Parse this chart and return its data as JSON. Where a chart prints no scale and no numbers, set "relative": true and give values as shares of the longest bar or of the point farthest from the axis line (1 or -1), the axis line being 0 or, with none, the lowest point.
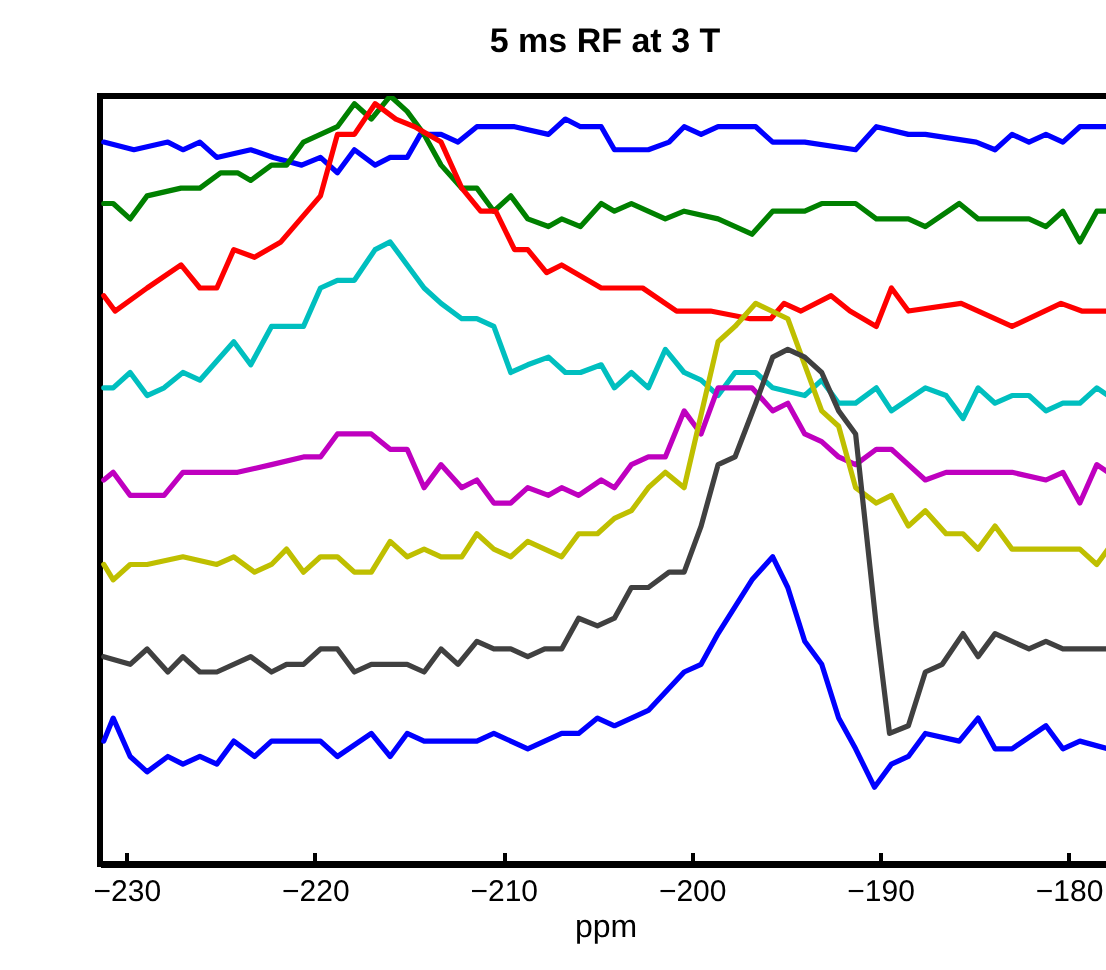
{
  "chart_data": {
    "type": "line",
    "title": "5 ms RF at 3 T",
    "xlabel": "ppm",
    "relative": true,
    "xlim": [
      -231.4,
      -177.8
    ],
    "xticks": [
      -230,
      -220,
      -210,
      -200,
      -190,
      -180
    ],
    "series": [
      {
        "color": "#0000ff",
        "x": [
          -231.2,
          -229.6,
          -227.8,
          -227,
          -226.1,
          -225.2,
          -223.4,
          -222.2,
          -220.7,
          -219.7,
          -218.8,
          -217.9,
          -216.8,
          -216,
          -215.1,
          -214.4,
          -213.3,
          -212.4,
          -211.4,
          -210.5,
          -209.4,
          -207.6,
          -206.7,
          -205.9,
          -204.8,
          -204.1,
          -202.3,
          -201.2,
          -200.4,
          -199.5,
          -198.6,
          -196.6,
          -195.7,
          -194,
          -191.3,
          -190.2,
          -188.5,
          -187.6,
          -184.9,
          -183.9,
          -183,
          -182.1,
          -181.2,
          -180.3,
          -179.4,
          -177.9
        ],
        "values": [
          0.94,
          0.93,
          0.94,
          0.93,
          0.94,
          0.92,
          0.93,
          0.92,
          0.91,
          0.92,
          0.9,
          0.93,
          0.91,
          0.92,
          0.92,
          0.95,
          0.95,
          0.94,
          0.96,
          0.96,
          0.96,
          0.95,
          0.97,
          0.96,
          0.96,
          0.93,
          0.93,
          0.94,
          0.96,
          0.95,
          0.96,
          0.96,
          0.94,
          0.94,
          0.93,
          0.96,
          0.95,
          0.95,
          0.94,
          0.93,
          0.95,
          0.94,
          0.95,
          0.94,
          0.96,
          0.96
        ]
      },
      {
        "color": "#008000",
        "x": [
          -231.2,
          -230.7,
          -229.8,
          -228.9,
          -227.1,
          -226.1,
          -225,
          -224.1,
          -223.4,
          -222.3,
          -221.5,
          -220.6,
          -219.7,
          -218.8,
          -217.9,
          -217,
          -216,
          -215.1,
          -214.2,
          -213.3,
          -212.2,
          -211.4,
          -210.5,
          -209.6,
          -208.7,
          -207.6,
          -206.9,
          -205.9,
          -204.8,
          -204.1,
          -203.2,
          -201.4,
          -200.4,
          -198.6,
          -196.8,
          -195.7,
          -194,
          -193.1,
          -191.3,
          -190.2,
          -188.5,
          -187.6,
          -185.8,
          -184.8,
          -183,
          -182.1,
          -181.2,
          -180.3,
          -179.4,
          -178.5,
          -177.9
        ],
        "values": [
          0.86,
          0.86,
          0.84,
          0.87,
          0.88,
          0.88,
          0.9,
          0.9,
          0.89,
          0.91,
          0.91,
          0.94,
          0.95,
          0.96,
          0.99,
          0.97,
          1.0,
          0.98,
          0.95,
          0.91,
          0.88,
          0.88,
          0.85,
          0.87,
          0.84,
          0.83,
          0.84,
          0.83,
          0.86,
          0.85,
          0.86,
          0.84,
          0.85,
          0.84,
          0.82,
          0.85,
          0.85,
          0.86,
          0.86,
          0.84,
          0.84,
          0.83,
          0.86,
          0.84,
          0.84,
          0.84,
          0.83,
          0.85,
          0.81,
          0.85,
          0.85
        ]
      },
      {
        "color": "#ff0000",
        "x": [
          -231.2,
          -230.6,
          -228.9,
          -227.1,
          -226.1,
          -225.2,
          -224.3,
          -223.2,
          -221.8,
          -219.7,
          -218.8,
          -217.9,
          -216.8,
          -215.7,
          -214.7,
          -213.3,
          -212.2,
          -211.2,
          -210.4,
          -209.4,
          -208.7,
          -207.7,
          -206.9,
          -204.8,
          -202.6,
          -200.8,
          -199,
          -196.9,
          -195.8,
          -195.1,
          -194.2,
          -192.6,
          -191.6,
          -190.2,
          -189.4,
          -188.5,
          -185.7,
          -183,
          -180.4,
          -179.3,
          -178
        ],
        "values": [
          0.74,
          0.72,
          0.75,
          0.78,
          0.75,
          0.75,
          0.8,
          0.79,
          0.81,
          0.87,
          0.95,
          0.95,
          0.99,
          0.97,
          0.96,
          0.94,
          0.88,
          0.85,
          0.85,
          0.8,
          0.8,
          0.77,
          0.78,
          0.75,
          0.75,
          0.72,
          0.72,
          0.71,
          0.71,
          0.73,
          0.72,
          0.74,
          0.72,
          0.7,
          0.75,
          0.72,
          0.73,
          0.7,
          0.73,
          0.72,
          0.72
        ]
      },
      {
        "color": "#00bfbf",
        "x": [
          -231.2,
          -230.7,
          -229.8,
          -228.9,
          -228,
          -227,
          -226.1,
          -224.3,
          -223.4,
          -222.3,
          -221.5,
          -220.6,
          -219.7,
          -218.8,
          -217.9,
          -216.8,
          -216,
          -215.1,
          -214.2,
          -213.3,
          -212.2,
          -211.4,
          -210.5,
          -209.6,
          -208.7,
          -207.6,
          -206.7,
          -205.9,
          -204.8,
          -204.1,
          -203.2,
          -202.3,
          -201.4,
          -200.4,
          -199.5,
          -198.6,
          -197.7,
          -196.6,
          -195.7,
          -194,
          -193.1,
          -192.2,
          -191.3,
          -190.2,
          -189.4,
          -187.6,
          -186.5,
          -185.6,
          -184.8,
          -183.9,
          -183,
          -182.1,
          -181.2,
          -180.3,
          -179.4,
          -178.5,
          -177.9
        ],
        "values": [
          0.62,
          0.62,
          0.64,
          0.61,
          0.62,
          0.64,
          0.63,
          0.68,
          0.65,
          0.7,
          0.7,
          0.7,
          0.75,
          0.76,
          0.76,
          0.8,
          0.81,
          0.78,
          0.75,
          0.73,
          0.71,
          0.71,
          0.7,
          0.64,
          0.65,
          0.66,
          0.64,
          0.64,
          0.65,
          0.62,
          0.64,
          0.62,
          0.67,
          0.64,
          0.63,
          0.61,
          0.64,
          0.64,
          0.62,
          0.61,
          0.63,
          0.6,
          0.6,
          0.62,
          0.59,
          0.62,
          0.61,
          0.58,
          0.62,
          0.6,
          0.61,
          0.61,
          0.59,
          0.6,
          0.6,
          0.62,
          0.61
        ]
      },
      {
        "color": "#bf00bf",
        "x": [
          -231.2,
          -230.7,
          -229.8,
          -228,
          -227,
          -226.1,
          -225.2,
          -224.1,
          -222.3,
          -220.6,
          -219.7,
          -218.8,
          -217.9,
          -217,
          -216,
          -215.1,
          -214.2,
          -213.3,
          -212.2,
          -211.4,
          -210.5,
          -209.6,
          -208.7,
          -207.6,
          -206.9,
          -206,
          -204.8,
          -204.1,
          -203.2,
          -202.3,
          -201.4,
          -200.4,
          -199.5,
          -198.6,
          -196.8,
          -195.7,
          -194.9,
          -194,
          -193.1,
          -192.2,
          -191.3,
          -190.2,
          -189.4,
          -188.5,
          -187.6,
          -186.5,
          -183.9,
          -183,
          -181.2,
          -180.3,
          -179.4,
          -178.5,
          -177.9
        ],
        "values": [
          0.5,
          0.51,
          0.48,
          0.48,
          0.51,
          0.51,
          0.51,
          0.51,
          0.52,
          0.53,
          0.53,
          0.56,
          0.56,
          0.56,
          0.54,
          0.54,
          0.49,
          0.52,
          0.49,
          0.5,
          0.47,
          0.47,
          0.49,
          0.48,
          0.49,
          0.48,
          0.5,
          0.49,
          0.52,
          0.53,
          0.53,
          0.59,
          0.56,
          0.62,
          0.62,
          0.59,
          0.6,
          0.56,
          0.55,
          0.53,
          0.52,
          0.54,
          0.54,
          0.52,
          0.5,
          0.51,
          0.51,
          0.51,
          0.5,
          0.51,
          0.47,
          0.52,
          0.51
        ]
      },
      {
        "color": "#bfbf00",
        "x": [
          -231.2,
          -230.7,
          -229.8,
          -228.9,
          -227,
          -225.2,
          -224.3,
          -223.2,
          -222.3,
          -221.5,
          -220.6,
          -219.7,
          -218.8,
          -217.9,
          -217,
          -216,
          -215.1,
          -214.2,
          -213.3,
          -212.2,
          -211.4,
          -210.5,
          -209.6,
          -208.7,
          -207.8,
          -206.9,
          -206,
          -205,
          -204.1,
          -203.2,
          -202.3,
          -201.4,
          -200.4,
          -198.6,
          -197.7,
          -196.6,
          -194.9,
          -194,
          -193.1,
          -192.2,
          -191.3,
          -190.2,
          -189.4,
          -188.5,
          -187.6,
          -186.5,
          -185.6,
          -184.8,
          -183.9,
          -183,
          -182.1,
          -181.2,
          -180.3,
          -179.4,
          -178.5,
          -177.9
        ],
        "values": [
          0.39,
          0.37,
          0.39,
          0.39,
          0.4,
          0.39,
          0.4,
          0.38,
          0.39,
          0.41,
          0.38,
          0.4,
          0.4,
          0.38,
          0.38,
          0.42,
          0.4,
          0.41,
          0.4,
          0.4,
          0.43,
          0.41,
          0.4,
          0.42,
          0.41,
          0.4,
          0.43,
          0.43,
          0.45,
          0.46,
          0.49,
          0.51,
          0.49,
          0.68,
          0.7,
          0.73,
          0.71,
          0.65,
          0.59,
          0.57,
          0.49,
          0.47,
          0.48,
          0.44,
          0.46,
          0.43,
          0.43,
          0.41,
          0.44,
          0.41,
          0.41,
          0.41,
          0.41,
          0.41,
          0.39,
          0.41
        ]
      },
      {
        "color": "#404040",
        "x": [
          -231.2,
          -229.8,
          -228.9,
          -227.8,
          -227,
          -226.1,
          -225.2,
          -223.4,
          -222.3,
          -221.5,
          -220.6,
          -219.7,
          -218.8,
          -217.9,
          -217,
          -215.1,
          -214.2,
          -213.3,
          -212.4,
          -211.4,
          -210.5,
          -209.6,
          -208.7,
          -207.8,
          -206.9,
          -206,
          -205,
          -204.1,
          -203.2,
          -202.3,
          -201.2,
          -200.4,
          -199.5,
          -198.6,
          -197.7,
          -196.6,
          -195.7,
          -194.9,
          -194,
          -193.1,
          -192.2,
          -191.3,
          -190.2,
          -189.5,
          -188.5,
          -187.6,
          -186.7,
          -185.6,
          -184.8,
          -183.9,
          -182.1,
          -181.2,
          -180.3,
          -177.9
        ],
        "values": [
          0.27,
          0.26,
          0.28,
          0.25,
          0.27,
          0.25,
          0.25,
          0.27,
          0.25,
          0.26,
          0.26,
          0.28,
          0.28,
          0.25,
          0.26,
          0.26,
          0.25,
          0.28,
          0.26,
          0.29,
          0.28,
          0.28,
          0.27,
          0.28,
          0.28,
          0.32,
          0.31,
          0.32,
          0.36,
          0.36,
          0.38,
          0.38,
          0.44,
          0.52,
          0.53,
          0.6,
          0.66,
          0.67,
          0.66,
          0.64,
          0.59,
          0.56,
          0.31,
          0.17,
          0.18,
          0.25,
          0.26,
          0.3,
          0.27,
          0.3,
          0.28,
          0.29,
          0.28,
          0.28
        ]
      },
      {
        "color": "#0000ff",
        "x": [
          -231.2,
          -230.7,
          -229.8,
          -228.9,
          -227.8,
          -227,
          -226.1,
          -225.2,
          -224.3,
          -223.2,
          -222.3,
          -220.6,
          -219.7,
          -218.8,
          -217,
          -216,
          -215.1,
          -214.2,
          -211.4,
          -210.5,
          -208.7,
          -207.8,
          -206.9,
          -206,
          -205,
          -204.1,
          -202.3,
          -200.4,
          -199.5,
          -198.6,
          -196.8,
          -195.7,
          -194.9,
          -194,
          -193.1,
          -192.2,
          -191.3,
          -190.3,
          -189.4,
          -188.5,
          -187.6,
          -185.8,
          -184.8,
          -183.9,
          -183,
          -181.2,
          -180.3,
          -179.4,
          -177.9
        ],
        "values": [
          0.16,
          0.19,
          0.14,
          0.12,
          0.14,
          0.13,
          0.14,
          0.13,
          0.16,
          0.14,
          0.16,
          0.16,
          0.16,
          0.14,
          0.17,
          0.14,
          0.17,
          0.16,
          0.16,
          0.17,
          0.15,
          0.16,
          0.17,
          0.17,
          0.19,
          0.18,
          0.2,
          0.25,
          0.26,
          0.3,
          0.37,
          0.4,
          0.36,
          0.29,
          0.26,
          0.19,
          0.15,
          0.1,
          0.13,
          0.14,
          0.17,
          0.16,
          0.19,
          0.15,
          0.15,
          0.18,
          0.15,
          0.16,
          0.15
        ]
      }
    ]
  }
}
